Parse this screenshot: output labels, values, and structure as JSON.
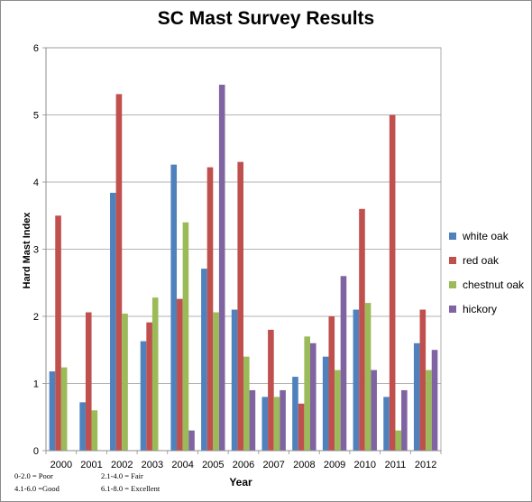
{
  "chart_data": {
    "type": "bar",
    "title": "SC Mast Survey Results",
    "xlabel": "Year",
    "ylabel": "Hard Mast Index",
    "ylim": [
      0,
      6
    ],
    "yticks": [
      0,
      1,
      2,
      3,
      4,
      5,
      6
    ],
    "grid": true,
    "legend_position": "right",
    "categories": [
      "2000",
      "2001",
      "2002",
      "2003",
      "2004",
      "2005",
      "2006",
      "2007",
      "2008",
      "2009",
      "2010",
      "2011",
      "2012"
    ],
    "series": [
      {
        "name": "white oak",
        "color": "#4f81bd",
        "values": [
          1.18,
          0.72,
          3.84,
          1.63,
          4.26,
          2.71,
          2.1,
          0.8,
          1.1,
          1.4,
          2.1,
          0.8,
          1.6
        ]
      },
      {
        "name": "red oak",
        "color": "#c0504d",
        "values": [
          3.5,
          2.06,
          5.31,
          1.91,
          2.26,
          4.22,
          4.3,
          1.8,
          0.7,
          2.0,
          3.6,
          5.0,
          2.1
        ]
      },
      {
        "name": "chestnut oak",
        "color": "#9bbb59",
        "values": [
          1.24,
          0.6,
          2.04,
          2.28,
          3.4,
          2.06,
          1.4,
          0.8,
          1.7,
          1.2,
          2.2,
          0.3,
          1.2
        ]
      },
      {
        "name": "hickory",
        "color": "#8064a2",
        "values": [
          0,
          0,
          0,
          0,
          0.3,
          5.45,
          0.9,
          0.9,
          1.6,
          2.6,
          1.2,
          0.9,
          1.5
        ]
      }
    ],
    "notes": [
      "0-2.0 = Poor",
      "2.1-4.0 = Fair",
      "4.1-6.0 =Good",
      "6.1-8.0 = Excellent"
    ]
  }
}
